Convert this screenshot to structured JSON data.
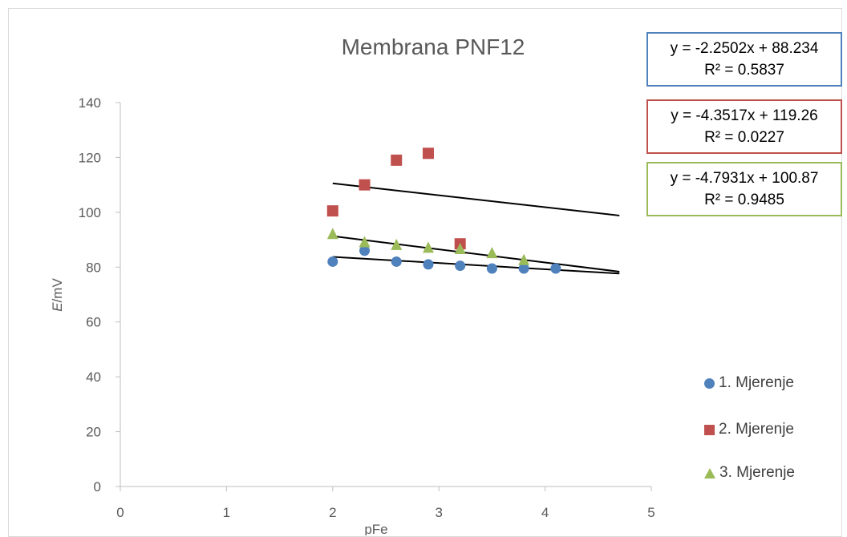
{
  "chart_data": {
    "type": "scatter",
    "title": "Membrana PNF12",
    "xlabel": "pFe",
    "ylabel_italic": "E",
    "ylabel_rest": "/mV",
    "xlim": [
      0,
      5
    ],
    "ylim": [
      0,
      140
    ],
    "x_ticks": [
      0,
      1,
      2,
      3,
      4,
      5
    ],
    "y_ticks": [
      0,
      20,
      40,
      60,
      80,
      100,
      120,
      140
    ],
    "grid": false,
    "legend_position": "right",
    "series": [
      {
        "name": "1. Mjerenje",
        "marker": "circle",
        "color": "#4f81bd",
        "points": [
          [
            2.0,
            82.0
          ],
          [
            2.3,
            86.0
          ],
          [
            2.6,
            82.0
          ],
          [
            2.9,
            81.0
          ],
          [
            3.2,
            80.5
          ],
          [
            3.5,
            79.5
          ],
          [
            3.8,
            79.5
          ],
          [
            4.1,
            79.5
          ]
        ],
        "trendline": {
          "equation": "y = -2.2502x + 88.234",
          "r2": "R² = 0.5837",
          "slope": -2.2502,
          "intercept": 88.234,
          "x_range": [
            2.0,
            4.7
          ]
        }
      },
      {
        "name": "2. Mjerenje",
        "marker": "square",
        "color": "#c0504d",
        "points": [
          [
            2.0,
            100.5
          ],
          [
            2.3,
            110.0
          ],
          [
            2.6,
            119.0
          ],
          [
            2.9,
            121.5
          ],
          [
            3.2,
            88.5
          ]
        ],
        "trendline": {
          "equation": "y = -4.3517x + 119.26",
          "r2": "R² = 0.0227",
          "slope": -4.3517,
          "intercept": 119.26,
          "x_range": [
            2.0,
            4.7
          ]
        }
      },
      {
        "name": "3. Mjerenje",
        "marker": "triangle",
        "color": "#9bbb59",
        "points": [
          [
            2.0,
            92.0
          ],
          [
            2.3,
            89.0
          ],
          [
            2.6,
            88.0
          ],
          [
            2.9,
            87.0
          ],
          [
            3.2,
            86.5
          ],
          [
            3.5,
            85.0
          ],
          [
            3.8,
            82.5
          ]
        ],
        "trendline": {
          "equation": "y = -4.7931x + 100.87",
          "r2": "R² = 0.9485",
          "slope": -4.7931,
          "intercept": 100.87,
          "x_range": [
            2.0,
            4.7
          ]
        }
      }
    ]
  }
}
